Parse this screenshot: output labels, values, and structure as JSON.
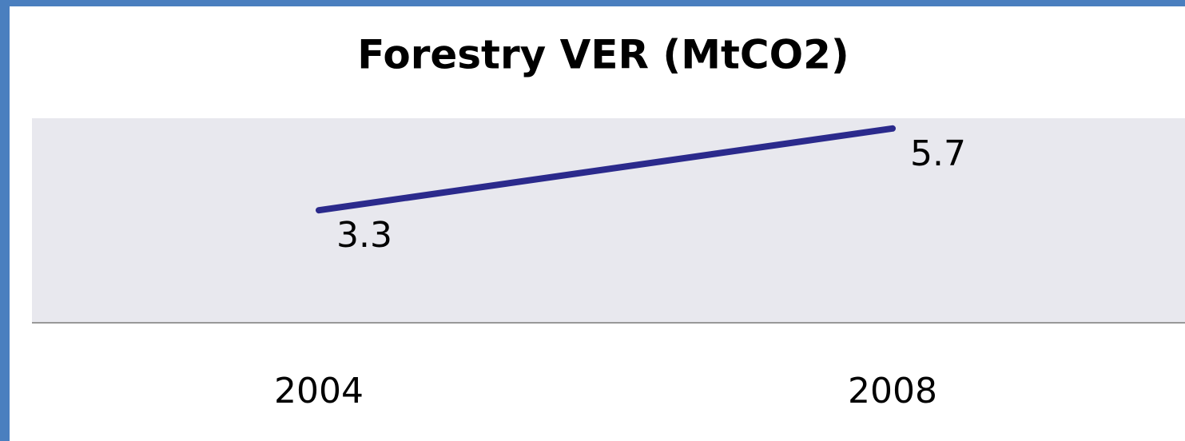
{
  "chart_data": {
    "type": "line",
    "title": "Forestry VER (MtCO2)",
    "categories": [
      "2004",
      "2008"
    ],
    "values": [
      3.3,
      5.7
    ],
    "color": "#2b2a8c",
    "ylim": [
      0,
      6
    ]
  }
}
